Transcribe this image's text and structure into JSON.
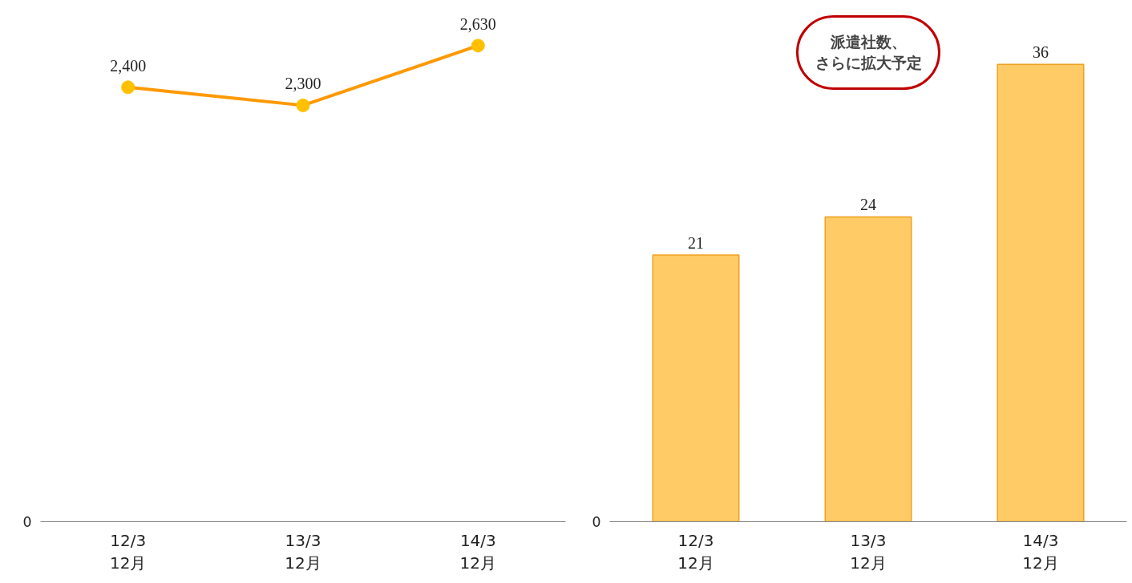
{
  "chart_data": [
    {
      "type": "line",
      "categories": [
        "12/3\n12月",
        "13/3\n12月",
        "14/3\n12月"
      ],
      "series": [
        {
          "color": "#ff9900",
          "values": [
            2400,
            2300,
            2630
          ],
          "value_labels": [
            "2,400",
            "2,300",
            "2,630"
          ]
        }
      ],
      "colors": [
        "#ffc000",
        "#ffc000",
        "#ffc000"
      ],
      "marker": "circle",
      "grid": false,
      "annotations": [
        "0"
      ]
    },
    {
      "type": "bar",
      "categories": [
        "12/3\n12月",
        "13/3\n12月",
        "14/3\n12月"
      ],
      "series": [
        {
          "color": "#fecb66",
          "values": [
            21,
            24,
            36
          ],
          "value_labels": [
            "21",
            "24",
            "36"
          ]
        }
      ],
      "grid": false,
      "annotations": [
        "0",
        "派遣社数、さらに拡大予定"
      ]
    }
  ]
}
